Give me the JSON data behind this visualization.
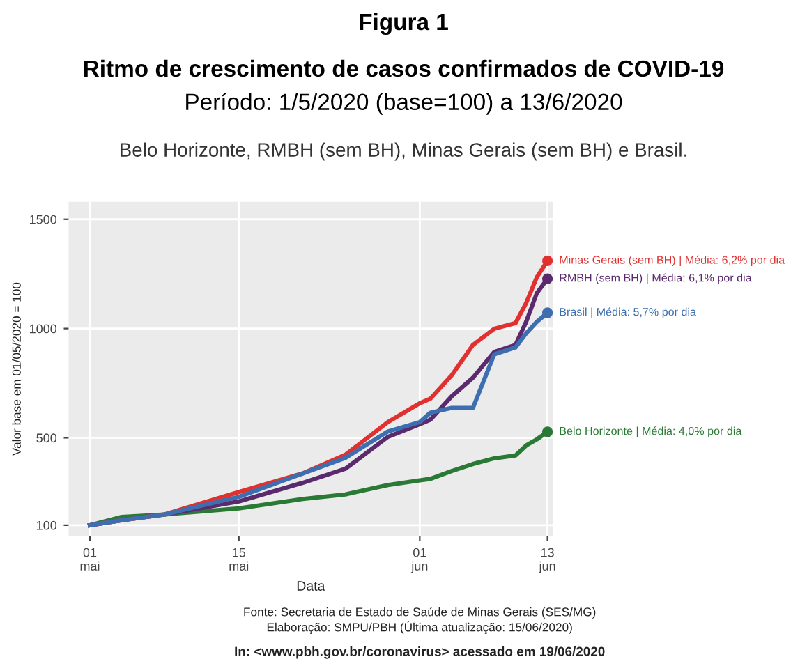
{
  "chart_data": {
    "type": "line",
    "title": "Figura 1\nRitmo de crescimento de casos confirmados de COVID-19",
    "subtitle": "Período: 1/5/2020 (base=100) a 13/6/2020",
    "legend_title": "Belo Horizonte, RMBH (sem BH), Minas Gerais (sem BH) e Brasil.",
    "xlabel": "Data",
    "ylabel": "Valor base em 01/05/2020 = 100",
    "x": [
      "2020-05-01",
      "2020-05-04",
      "2020-05-08",
      "2020-05-15",
      "2020-05-21",
      "2020-05-25",
      "2020-05-29",
      "2020-06-01",
      "2020-06-02",
      "2020-06-04",
      "2020-06-06",
      "2020-06-08",
      "2020-06-10",
      "2020-06-11",
      "2020-06-12",
      "2020-06-13"
    ],
    "series": [
      {
        "name": "Belo Horizonte | Média: 4,0% por dia",
        "color": "#2a7a35",
        "values": [
          100,
          138,
          149,
          177,
          220,
          241,
          284,
          305,
          312,
          348,
          380,
          406,
          419,
          465,
          493,
          527
        ]
      },
      {
        "name": "RMBH (sem BH) | Média: 6,1% por dia",
        "color": "#5b2a6e",
        "values": [
          100,
          123,
          149,
          209,
          294,
          358,
          504,
          562,
          583,
          690,
          775,
          893,
          925,
          1031,
          1162,
          1228
        ]
      },
      {
        "name": "Minas Gerais (sem BH) | Média: 6,2% por dia",
        "color": "#e03030",
        "values": [
          100,
          123,
          149,
          252,
          337,
          422,
          572,
          658,
          679,
          786,
          925,
          999,
          1025,
          1117,
          1235,
          1310
        ]
      },
      {
        "name": "Brasil | Média: 5,7% por dia",
        "color": "#3d6fb0",
        "values": [
          100,
          123,
          149,
          230,
          337,
          408,
          529,
          572,
          615,
          637,
          637,
          882,
          914,
          978,
          1031,
          1072
        ]
      }
    ],
    "xlim": [
      "2020-04-29",
      "2020-06-13T12:00"
    ],
    "xticks": [
      {
        "value": "2020-05-01",
        "label": "01\nmai"
      },
      {
        "value": "2020-05-15",
        "label": "15\nmai"
      },
      {
        "value": "2020-06-01",
        "label": "01\njun"
      },
      {
        "value": "2020-06-13",
        "label": "13\njun"
      }
    ],
    "ylim": [
      50,
      1580
    ],
    "yticks": [
      100,
      500,
      1000,
      1500
    ],
    "grid": true,
    "line_style": "solid",
    "annotations": [
      "Fonte: Secretaria de Estado de Saúde de Minas Gerais (SES/MG)",
      "Elaboração: SMPU/PBH (Última atualização: 15/06/2020)",
      "In: <www.pbh.gov.br/coronavirus> acessado em 19/06/2020"
    ]
  }
}
